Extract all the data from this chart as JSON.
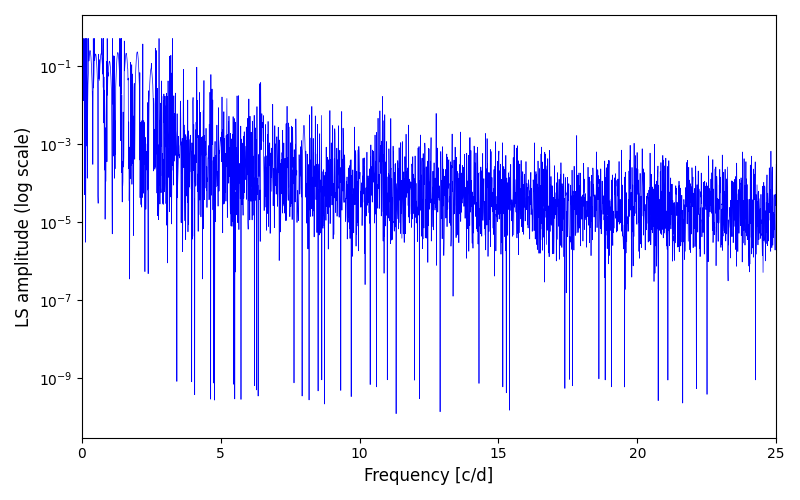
{
  "xlabel": "Frequency [c/d]",
  "ylabel": "LS amplitude (log scale)",
  "xlim": [
    0,
    25
  ],
  "ylim_log": [
    3e-11,
    2.0
  ],
  "line_color": "#0000ff",
  "line_width": 0.5,
  "figsize": [
    8.0,
    5.0
  ],
  "dpi": 100,
  "seed": 12345,
  "n_points": 3000,
  "freq_max": 25.0,
  "background_color": "#ffffff",
  "yticks": [
    1e-09,
    1e-07,
    1e-05,
    0.001,
    0.1
  ]
}
